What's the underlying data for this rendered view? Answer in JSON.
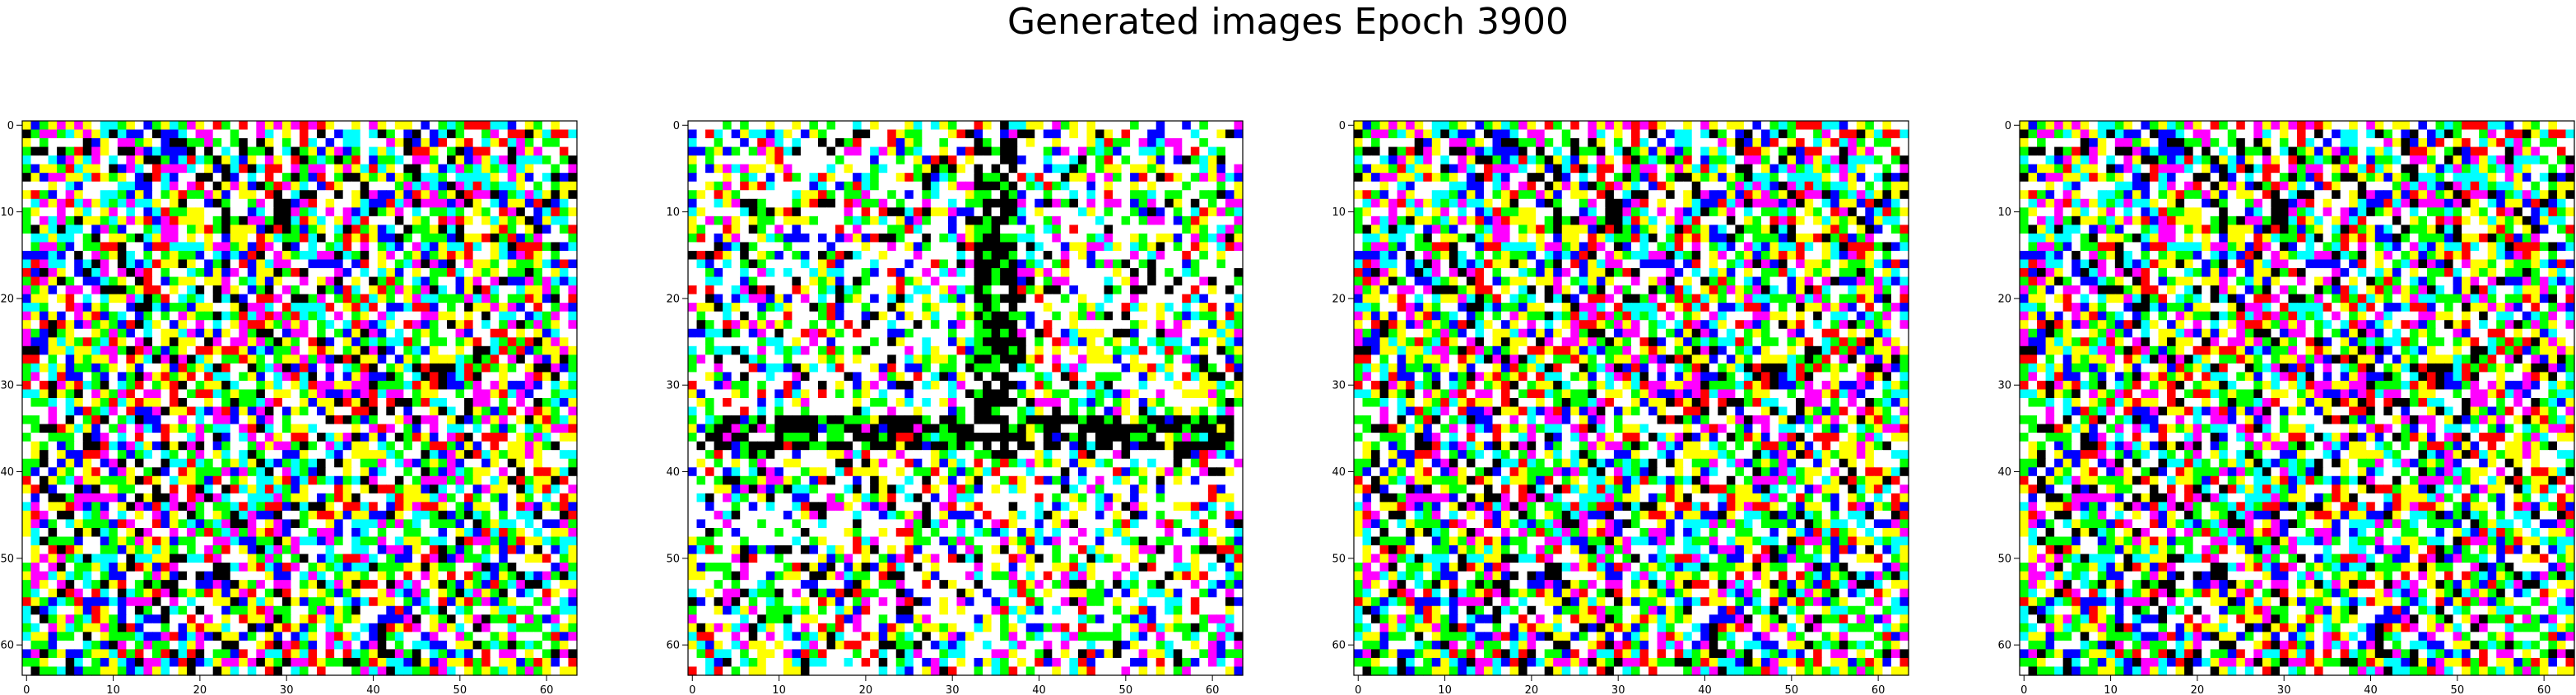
{
  "figure": {
    "suptitle": "Generated images Epoch 3900"
  },
  "chart_data": [
    {
      "type": "heatmap",
      "xlim": [
        0,
        64
      ],
      "ylim": [
        64,
        0
      ],
      "xticks": [
        0,
        10,
        20,
        30,
        40,
        50,
        60
      ],
      "yticks": [
        0,
        10,
        20,
        30,
        40,
        50,
        60
      ],
      "grid": false,
      "palette": [
        "#ffffff",
        "#ffff00",
        "#00ff00",
        "#00ffff",
        "#ff00ff",
        "#ff0000",
        "#0000ff",
        "#000000"
      ],
      "seed": 17,
      "structured": false
    },
    {
      "type": "heatmap",
      "xlim": [
        0,
        64
      ],
      "ylim": [
        64,
        0
      ],
      "xticks": [
        0,
        10,
        20,
        30,
        40,
        50,
        60
      ],
      "yticks": [
        0,
        10,
        20,
        30,
        40,
        50,
        60
      ],
      "grid": false,
      "palette": [
        "#ffffff",
        "#ffff00",
        "#00ff00",
        "#00ffff",
        "#ff00ff",
        "#ff0000",
        "#0000ff",
        "#000000"
      ],
      "seed": 53,
      "structured": true
    },
    {
      "type": "heatmap",
      "xlim": [
        0,
        64
      ],
      "ylim": [
        64,
        0
      ],
      "xticks": [
        0,
        10,
        20,
        30,
        40,
        50,
        60
      ],
      "yticks": [
        0,
        10,
        20,
        30,
        40,
        50,
        60
      ],
      "grid": false,
      "palette": [
        "#ffffff",
        "#ffff00",
        "#00ff00",
        "#00ffff",
        "#ff00ff",
        "#ff0000",
        "#0000ff",
        "#000000"
      ],
      "seed": 17,
      "structured": false
    },
    {
      "type": "heatmap",
      "xlim": [
        0,
        64
      ],
      "ylim": [
        64,
        0
      ],
      "xticks": [
        0,
        10,
        20,
        30,
        40,
        50,
        60
      ],
      "yticks": [
        0,
        10,
        20,
        30,
        40,
        50,
        60
      ],
      "grid": false,
      "palette": [
        "#ffffff",
        "#ffff00",
        "#00ff00",
        "#00ffff",
        "#ff00ff",
        "#ff0000",
        "#0000ff",
        "#000000"
      ],
      "seed": 17,
      "structured": false
    }
  ]
}
